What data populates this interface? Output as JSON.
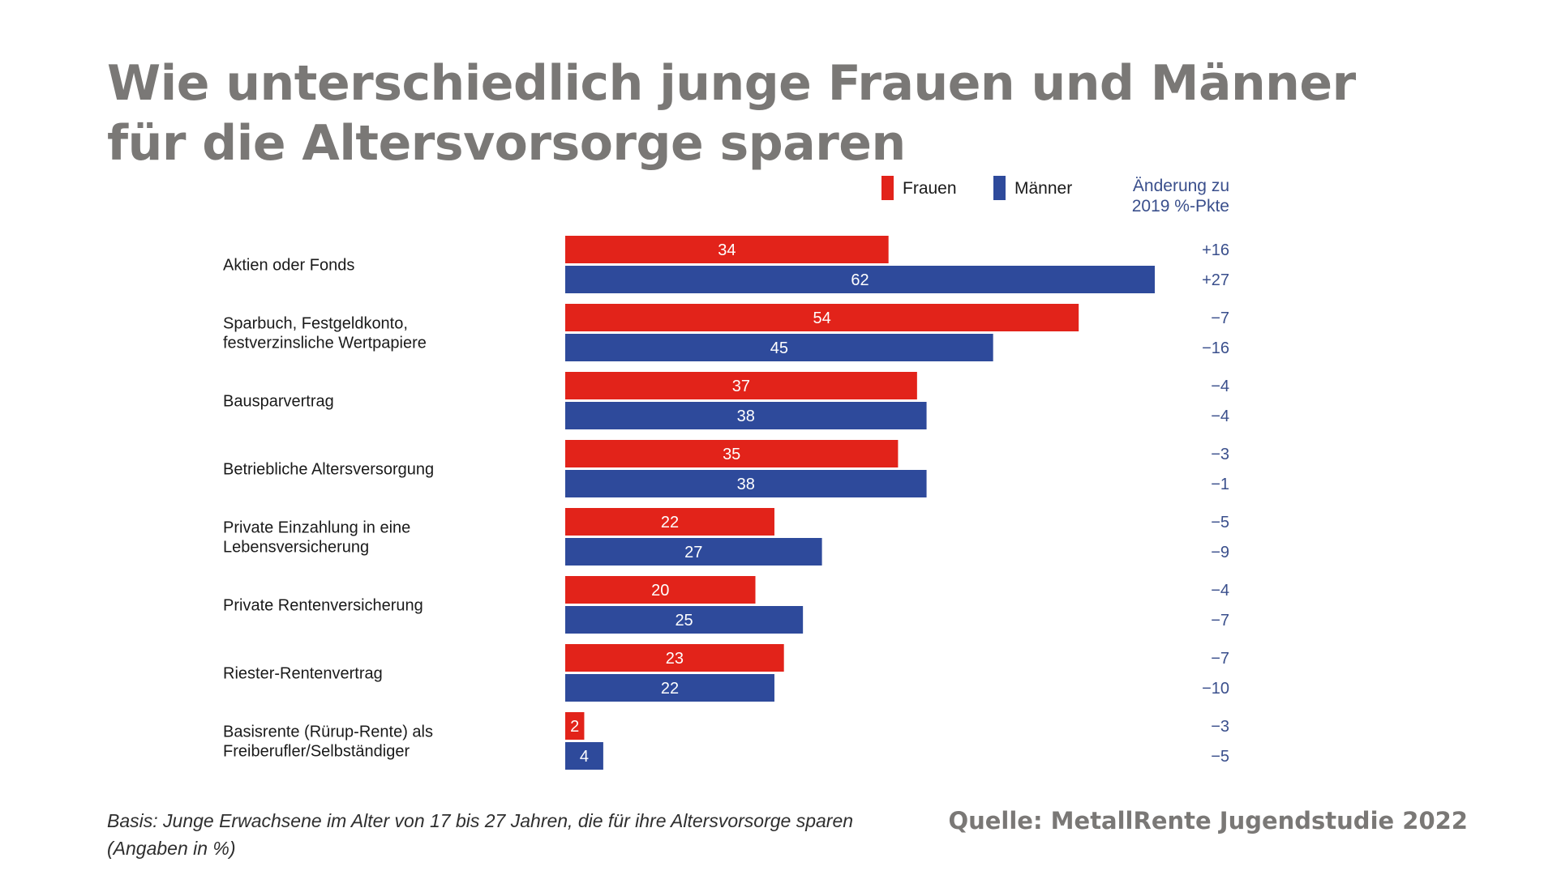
{
  "title": {
    "line1": "Wie unterschiedlich junge Frauen und Männer",
    "line2": "für die Altersvorsorge sparen"
  },
  "legend": {
    "frauen": "Frauen",
    "maenner": "Männer",
    "change_header_line1": "Änderung zu",
    "change_header_line2": "2019 %-Pkte"
  },
  "colors": {
    "frauen": "#e2231a",
    "maenner": "#2e4a9b",
    "change_text": "#3a4f8c",
    "label_text": "#1a1a1a"
  },
  "chart_data": {
    "type": "bar",
    "orientation": "horizontal",
    "categories": [
      [
        "Aktien oder Fonds"
      ],
      [
        "Sparbuch, Festgeldkonto,",
        "festverzinsliche Wertpapiere"
      ],
      [
        "Bausparvertrag"
      ],
      [
        "Betriebliche Altersversorgung"
      ],
      [
        "Private Einzahlung in eine",
        "Lebensversicherung"
      ],
      [
        "Private Rentenversicherung"
      ],
      [
        "Riester-Rentenvertrag"
      ],
      [
        "Basisrente (Rürup-Rente) als",
        "Freiberufler/Selbständiger"
      ]
    ],
    "series": [
      {
        "name": "Frauen",
        "values": [
          34,
          54,
          37,
          35,
          22,
          20,
          23,
          2
        ],
        "changes": [
          "+16",
          "−7",
          "−4",
          "−3",
          "−5",
          "−4",
          "−7",
          "−3"
        ]
      },
      {
        "name": "Männer",
        "values": [
          62,
          45,
          38,
          38,
          27,
          25,
          22,
          4
        ],
        "changes": [
          "+27",
          "−16",
          "−4",
          "−1",
          "−9",
          "−7",
          "−10",
          "−5"
        ]
      }
    ],
    "xlim": [
      0,
      62
    ],
    "grid": false,
    "legend_position": "top-right"
  },
  "footer": {
    "basis_line1": "Basis: Junge Erwachsene im Alter von 17 bis 27 Jahren, die für ihre Altersvorsorge sparen",
    "basis_line2": "(Angaben in %)",
    "source": "Quelle: MetallRente Jugendstudie 2022"
  }
}
